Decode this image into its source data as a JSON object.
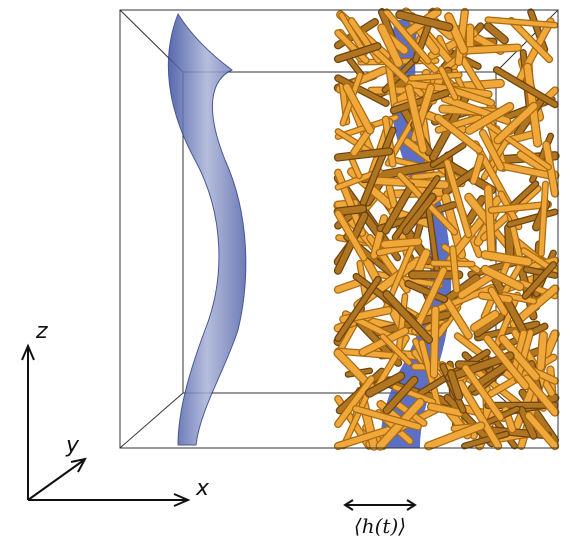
{
  "axes": {
    "z": "z",
    "y": "y",
    "x": "x"
  },
  "annotation": "⟨h(t)⟩"
}
